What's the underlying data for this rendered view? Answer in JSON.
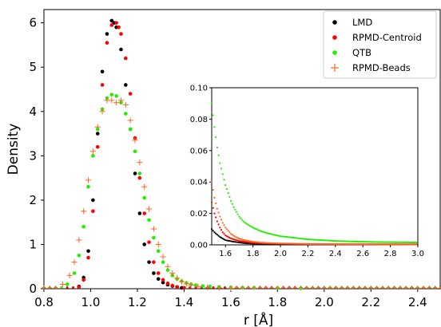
{
  "chart_data": [
    {
      "type": "scatter",
      "xlabel": "r [Å]",
      "ylabel": "Density",
      "xlim": [
        0.8,
        2.5
      ],
      "ylim": [
        0,
        6.3
      ],
      "xticks": [
        "0.8",
        "1.0",
        "1.2",
        "1.4",
        "1.6",
        "1.8",
        "2.0",
        "2.2",
        "2.4"
      ],
      "yticks": [
        "0",
        "1",
        "2",
        "3",
        "4",
        "5",
        "6"
      ],
      "legend_position": "top-right",
      "series": [
        {
          "name": "LMD",
          "color": "#000000",
          "marker": "dot",
          "x": [
            0.95,
            0.97,
            0.99,
            1.01,
            1.03,
            1.05,
            1.07,
            1.09,
            1.1,
            1.11,
            1.13,
            1.15,
            1.17,
            1.19,
            1.21,
            1.23,
            1.25,
            1.27,
            1.29,
            1.31,
            1.33,
            1.35,
            1.37,
            1.39
          ],
          "y": [
            0.05,
            0.25,
            0.85,
            2.0,
            3.5,
            4.9,
            5.75,
            6.05,
            6.0,
            5.9,
            5.4,
            4.6,
            3.6,
            2.6,
            1.7,
            1.0,
            0.6,
            0.35,
            0.22,
            0.14,
            0.09,
            0.06,
            0.04,
            0.02
          ]
        },
        {
          "name": "RPMD-Centroid",
          "color": "#ff0000",
          "marker": "dot",
          "x": [
            0.95,
            0.97,
            0.99,
            1.01,
            1.03,
            1.05,
            1.07,
            1.09,
            1.11,
            1.12,
            1.13,
            1.15,
            1.17,
            1.19,
            1.21,
            1.23,
            1.25,
            1.27,
            1.29,
            1.31,
            1.33,
            1.35,
            1.37,
            1.4
          ],
          "y": [
            0.04,
            0.2,
            0.7,
            1.75,
            3.2,
            4.6,
            5.55,
            5.95,
            6.0,
            5.9,
            5.75,
            5.2,
            4.4,
            3.4,
            2.5,
            1.7,
            1.05,
            0.6,
            0.35,
            0.2,
            0.12,
            0.07,
            0.04,
            0.02
          ]
        },
        {
          "name": "QTB",
          "color": "#22ee00",
          "marker": "dot",
          "x": [
            0.9,
            0.93,
            0.95,
            0.97,
            0.99,
            1.01,
            1.03,
            1.05,
            1.07,
            1.09,
            1.11,
            1.13,
            1.15,
            1.17,
            1.19,
            1.21,
            1.23,
            1.25,
            1.27,
            1.29,
            1.31,
            1.33,
            1.35,
            1.37,
            1.39,
            1.41,
            1.43,
            1.45,
            1.48,
            1.51,
            1.55,
            1.6,
            1.65,
            1.7,
            1.8,
            1.9
          ],
          "y": [
            0.1,
            0.35,
            0.75,
            1.4,
            2.3,
            3.0,
            3.6,
            4.05,
            4.3,
            4.38,
            4.35,
            4.2,
            3.95,
            3.6,
            3.1,
            2.6,
            2.05,
            1.55,
            1.15,
            0.85,
            0.6,
            0.42,
            0.3,
            0.22,
            0.17,
            0.13,
            0.1,
            0.08,
            0.06,
            0.05,
            0.04,
            0.03,
            0.025,
            0.02,
            0.015,
            0.01
          ]
        },
        {
          "name": "RPMD-Beads",
          "color": "#ff6622",
          "marker": "plus",
          "x": [
            0.88,
            0.91,
            0.93,
            0.95,
            0.97,
            0.99,
            1.01,
            1.03,
            1.05,
            1.07,
            1.09,
            1.11,
            1.13,
            1.15,
            1.17,
            1.19,
            1.21,
            1.23,
            1.25,
            1.27,
            1.29,
            1.31,
            1.33,
            1.35,
            1.37,
            1.39,
            1.41,
            1.43,
            1.46,
            1.5,
            1.55,
            1.6
          ],
          "y": [
            0.1,
            0.3,
            0.6,
            1.1,
            1.75,
            2.45,
            3.1,
            3.65,
            4.0,
            4.25,
            4.25,
            4.2,
            4.25,
            4.15,
            3.8,
            3.35,
            2.85,
            2.3,
            1.8,
            1.35,
            1.0,
            0.72,
            0.5,
            0.35,
            0.24,
            0.16,
            0.11,
            0.08,
            0.05,
            0.03,
            0.02,
            0.01
          ]
        }
      ]
    },
    {
      "type": "scatter",
      "xlim": [
        1.5,
        3.0
      ],
      "ylim": [
        0,
        0.1
      ],
      "xticks": [
        "1.6",
        "1.8",
        "2.0",
        "2.2",
        "2.4",
        "2.6",
        "2.8",
        "3.0"
      ],
      "yticks": [
        "0.00",
        "0.02",
        "0.04",
        "0.06",
        "0.08",
        "0.10"
      ],
      "series": [
        {
          "name": "LMD",
          "color": "#000000",
          "x": [
            1.5,
            1.52,
            1.54,
            1.56,
            1.58,
            1.6,
            1.63,
            1.66,
            1.7,
            1.75,
            1.8,
            1.9,
            2.0,
            2.2,
            2.4,
            2.6,
            2.8,
            3.0
          ],
          "y": [
            0.01,
            0.008,
            0.0065,
            0.005,
            0.004,
            0.003,
            0.0025,
            0.002,
            0.0015,
            0.001,
            0.0008,
            0.0006,
            0.0005,
            0.0004,
            0.0003,
            0.0003,
            0.0003,
            0.0003
          ]
        },
        {
          "name": "RPMD-Centroid",
          "color": "#ff0000",
          "x": [
            1.5,
            1.52,
            1.54,
            1.56,
            1.58,
            1.6,
            1.63,
            1.66,
            1.7,
            1.75,
            1.8,
            1.9,
            2.0,
            2.2,
            2.4,
            2.6,
            2.8,
            3.0
          ],
          "y": [
            0.027,
            0.02,
            0.015,
            0.011,
            0.008,
            0.006,
            0.0045,
            0.0035,
            0.0025,
            0.0018,
            0.0013,
            0.0009,
            0.0007,
            0.0005,
            0.0004,
            0.0004,
            0.0003,
            0.0003
          ]
        },
        {
          "name": "QTB",
          "color": "#22ee00",
          "x": [
            1.5,
            1.52,
            1.54,
            1.56,
            1.58,
            1.6,
            1.62,
            1.64,
            1.66,
            1.68,
            1.7,
            1.73,
            1.76,
            1.8,
            1.85,
            1.9,
            1.95,
            2.0,
            2.1,
            2.2,
            2.3,
            2.4,
            2.5,
            2.6,
            2.7,
            2.8,
            2.9,
            3.0
          ],
          "y": [
            0.09,
            0.075,
            0.062,
            0.052,
            0.045,
            0.038,
            0.033,
            0.028,
            0.024,
            0.021,
            0.018,
            0.015,
            0.013,
            0.011,
            0.009,
            0.0075,
            0.0065,
            0.0055,
            0.0045,
            0.0035,
            0.003,
            0.0025,
            0.0022,
            0.002,
            0.0018,
            0.0017,
            0.0016,
            0.0015
          ]
        },
        {
          "name": "RPMD-Beads",
          "color": "#ff6622",
          "x": [
            1.5,
            1.52,
            1.54,
            1.56,
            1.58,
            1.6,
            1.62,
            1.64,
            1.66,
            1.68,
            1.7,
            1.73,
            1.76,
            1.8,
            1.85,
            1.9,
            2.0,
            2.2,
            2.4,
            2.6,
            2.8,
            3.0
          ],
          "y": [
            0.04,
            0.03,
            0.023,
            0.018,
            0.014,
            0.011,
            0.009,
            0.007,
            0.0058,
            0.0048,
            0.004,
            0.0032,
            0.0026,
            0.002,
            0.0015,
            0.0012,
            0.0009,
            0.0006,
            0.0005,
            0.0004,
            0.0004,
            0.0003
          ]
        }
      ]
    }
  ]
}
